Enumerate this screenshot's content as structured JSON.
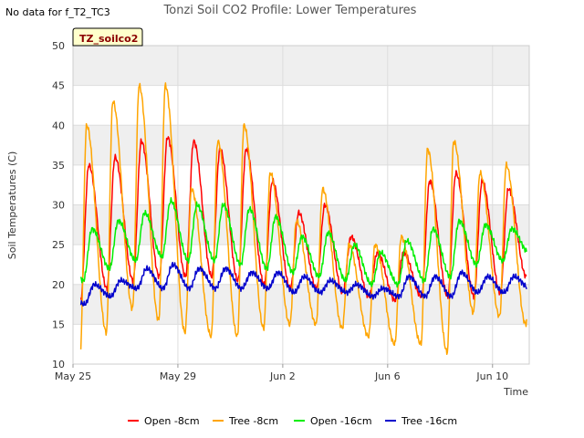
{
  "no_data_note": "No data for f_T2_TC3",
  "site_tag": "TZ_soilco2",
  "chart_data": {
    "type": "line",
    "title": "Tonzi Soil CO2 Profile: Lower Temperatures",
    "xlabel": "Time",
    "ylabel": "Soil Temperatures (C)",
    "ylim": [
      10,
      50
    ],
    "yticks": [
      10,
      15,
      20,
      25,
      30,
      35,
      40,
      45,
      50
    ],
    "xlim_days": [
      0,
      17.4
    ],
    "xticks": [
      {
        "day": 0,
        "label": "May 25"
      },
      {
        "day": 4,
        "label": "May 29"
      },
      {
        "day": 8,
        "label": "Jun 2"
      },
      {
        "day": 12,
        "label": "Jun 6"
      },
      {
        "day": 16,
        "label": "Jun 10"
      }
    ],
    "band_fill": "#efefef",
    "grid": true,
    "legend_position": "bottom",
    "series": [
      {
        "name": "Open -8cm",
        "color": "#ff0000",
        "start_day": 0.3,
        "end_day": 17.3,
        "min_hour": 7,
        "max_hour": 14.5,
        "daily_max": [
          35,
          36,
          38,
          38.5,
          38,
          37,
          37,
          33,
          29,
          30,
          26,
          24,
          24,
          33,
          34,
          33,
          32,
          31
        ],
        "daily_min": [
          18,
          19.5,
          20.5,
          21,
          21,
          21,
          20.5,
          20,
          19.5,
          19.5,
          19,
          18.5,
          18,
          18.5,
          18.5,
          18.5,
          19,
          21
        ]
      },
      {
        "name": "Tree -8cm",
        "color": "#ffa500",
        "start_day": 0.3,
        "end_day": 17.3,
        "min_hour": 6.5,
        "max_hour": 12.5,
        "daily_max": [
          40,
          43,
          45,
          45,
          32,
          38,
          40,
          34,
          28,
          32,
          25,
          25,
          26,
          37,
          38,
          34,
          35,
          35.5
        ],
        "daily_min": [
          11,
          14,
          17,
          15.5,
          14,
          13.5,
          13.5,
          14.5,
          15,
          15,
          14.5,
          13.5,
          12.5,
          12.5,
          11.5,
          16.5,
          16,
          15
        ]
      },
      {
        "name": "Open -16cm",
        "color": "#00ee00",
        "start_day": 0.3,
        "end_day": 17.3,
        "min_hour": 9.5,
        "max_hour": 17.5,
        "daily_max": [
          27,
          28,
          29,
          30.5,
          30,
          30,
          29.5,
          28.5,
          26,
          26.5,
          25,
          24,
          25.5,
          27,
          28,
          27.5,
          27,
          27
        ],
        "daily_min": [
          20.5,
          22,
          23,
          23.5,
          23,
          23,
          22.5,
          22,
          21.5,
          21,
          20.5,
          20,
          20,
          20.5,
          21,
          22.5,
          23,
          24
        ]
      },
      {
        "name": "Tree -16cm",
        "color": "#0000cc",
        "start_day": 0.3,
        "end_day": 17.3,
        "min_hour": 10.5,
        "max_hour": 19.5,
        "daily_max": [
          20,
          20.5,
          22,
          22.5,
          22,
          22,
          21.5,
          21.5,
          21,
          20.5,
          20,
          19.5,
          21,
          21,
          21.5,
          21,
          21,
          21
        ],
        "daily_min": [
          17.5,
          18.5,
          19.5,
          19.5,
          19.5,
          19.5,
          19.5,
          19.5,
          19,
          19,
          19,
          18.5,
          18.5,
          18.5,
          18.5,
          19,
          19,
          19.5
        ]
      }
    ]
  }
}
